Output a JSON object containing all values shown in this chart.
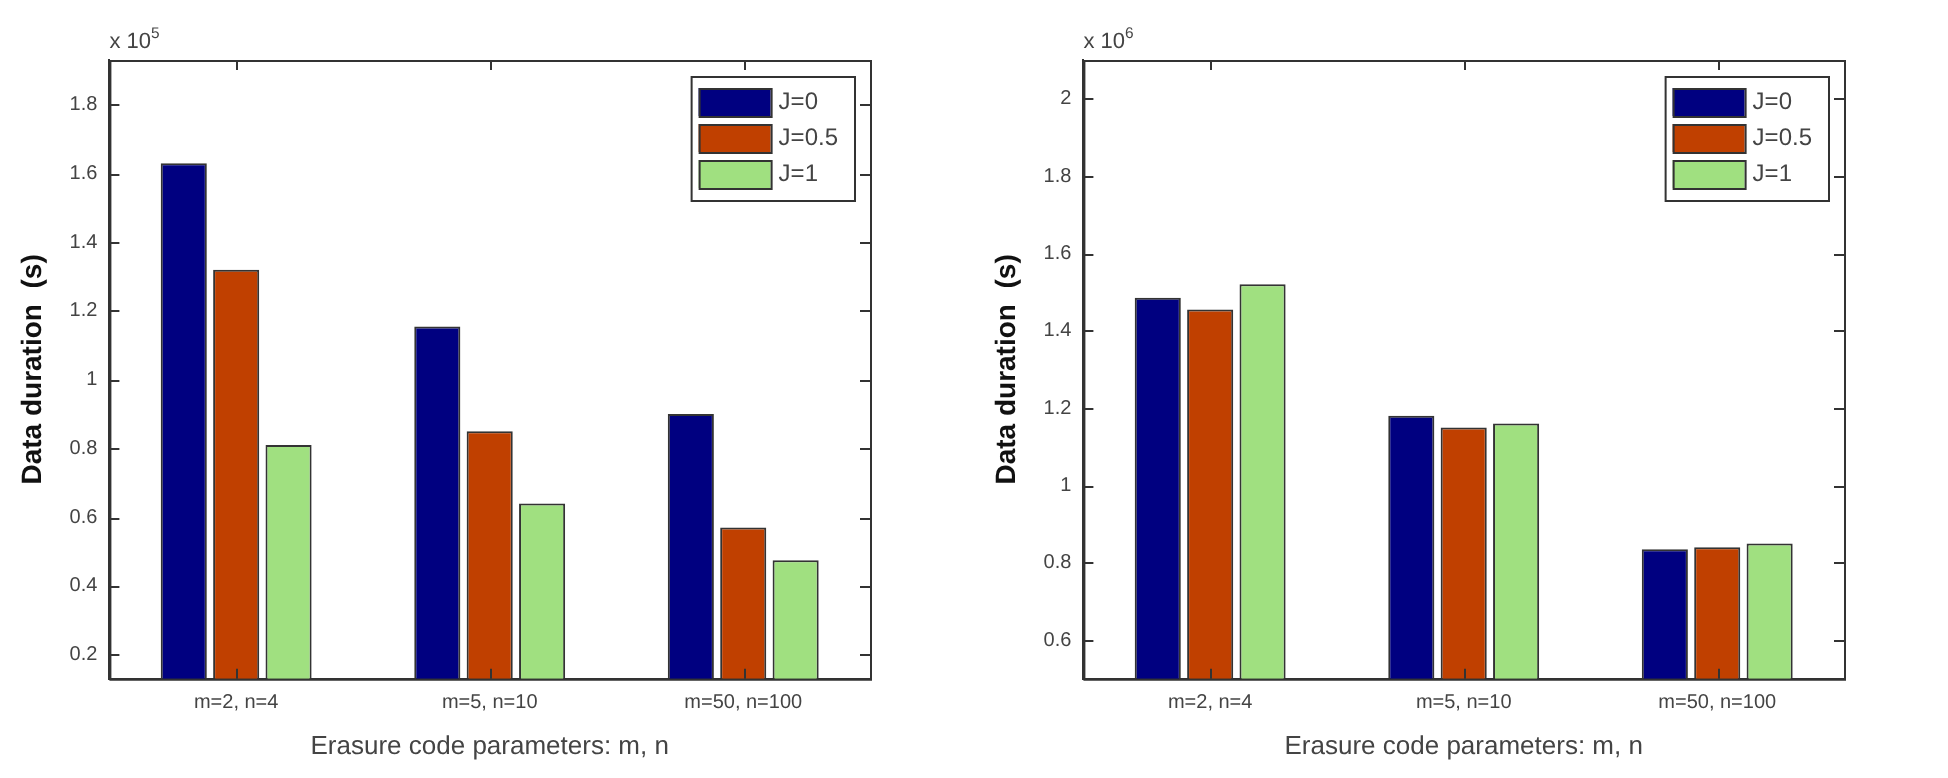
{
  "chart_data": [
    {
      "type": "bar",
      "xlabel": "Erasure code parameters: m, n",
      "ylabel": "Data duration  (s)",
      "annotations": [
        "x 10$^{5}$"
      ],
      "categories": [
        "m=2, n=4",
        "m=5, n=10",
        "m=50, n=100"
      ],
      "series": [
        {
          "name": "J=0",
          "color": "#000080",
          "values": [
            1.63,
            1.155,
            0.9
          ]
        },
        {
          "name": "J=0.5",
          "color": "#c04000",
          "values": [
            1.32,
            0.85,
            0.57
          ]
        },
        {
          "name": "J=1",
          "color": "#a0e080",
          "values": [
            0.81,
            0.64,
            0.475
          ]
        }
      ],
      "ylim": [
        0.13,
        1.93
      ],
      "yticks": [
        0.2,
        0.4,
        0.6,
        0.8,
        1,
        1.2,
        1.4,
        1.6,
        1.8
      ],
      "grid": false,
      "legend": "top right"
    },
    {
      "type": "bar",
      "xlabel": "Erasure code parameters: m, n",
      "ylabel": "Data duration  (s)",
      "annotations": [
        "x 10$^{6}$"
      ],
      "categories": [
        "m=2, n=4",
        "m=5, n=10",
        "m=50, n=100"
      ],
      "series": [
        {
          "name": "J=0",
          "color": "#000080",
          "values": [
            1.485,
            1.18,
            0.835
          ]
        },
        {
          "name": "J=0.5",
          "color": "#c04000",
          "values": [
            1.455,
            1.15,
            0.84
          ]
        },
        {
          "name": "J=1",
          "color": "#a0e080",
          "values": [
            1.52,
            1.16,
            0.85
          ]
        }
      ],
      "ylim": [
        0.5,
        2.1
      ],
      "yticks": [
        0.6,
        0.8,
        1,
        1.2,
        1.4,
        1.6,
        1.8,
        2
      ],
      "grid": false,
      "legend": "top right"
    }
  ]
}
